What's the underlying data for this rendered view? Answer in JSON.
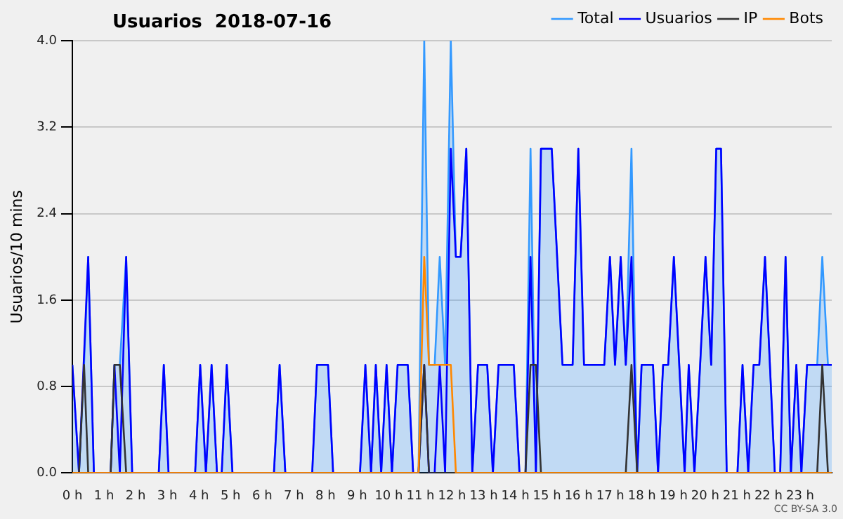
{
  "chart_data": {
    "type": "line",
    "title": "Usuarios  2018-07-16",
    "ylabel": "Usuarios/10 mins",
    "xlim": [
      0,
      24
    ],
    "xticks": [
      {
        "value": 0,
        "label": "0 h"
      },
      {
        "value": 1,
        "label": "1 h"
      },
      {
        "value": 2,
        "label": "2 h"
      },
      {
        "value": 3,
        "label": "3 h"
      },
      {
        "value": 4,
        "label": "4 h"
      },
      {
        "value": 5,
        "label": "5 h"
      },
      {
        "value": 6,
        "label": "6 h"
      },
      {
        "value": 7,
        "label": "7 h"
      },
      {
        "value": 8,
        "label": "8 h"
      },
      {
        "value": 9,
        "label": "9 h"
      },
      {
        "value": 10,
        "label": "10 h"
      },
      {
        "value": 11,
        "label": "11 h"
      },
      {
        "value": 12,
        "label": "12 h"
      },
      {
        "value": 13,
        "label": "13 h"
      },
      {
        "value": 14,
        "label": "14 h"
      },
      {
        "value": 15,
        "label": "15 h"
      },
      {
        "value": 16,
        "label": "16 h"
      },
      {
        "value": 17,
        "label": "17 h"
      },
      {
        "value": 18,
        "label": "18 h"
      },
      {
        "value": 19,
        "label": "19 h"
      },
      {
        "value": 20,
        "label": "20 h"
      },
      {
        "value": 21,
        "label": "21 h"
      },
      {
        "value": 22,
        "label": "22 h"
      },
      {
        "value": 23,
        "label": "23 h"
      }
    ],
    "ylim": [
      0,
      4
    ],
    "yticks": [
      {
        "value": 0,
        "label": "0.0"
      },
      {
        "value": 0.8,
        "label": "0.8"
      },
      {
        "value": 1.6,
        "label": "1.6"
      },
      {
        "value": 2.4,
        "label": "2.4"
      },
      {
        "value": 3.2,
        "label": "3.2"
      },
      {
        "value": 4,
        "label": "4.0"
      }
    ],
    "grid": "y",
    "legend": "top right",
    "marker": "none",
    "line_style": "solid",
    "annotations": [
      "CC BY-SA 3.0"
    ],
    "series": [
      {
        "name": "Total",
        "type": "area",
        "color": "#3399ff",
        "x": [
          0,
          0.21,
          0.37,
          0.5,
          0.68,
          1.21,
          1.33,
          1.5,
          1.7,
          1.89,
          2.73,
          2.89,
          3.04,
          3.88,
          4.04,
          4.22,
          4.4,
          4.57,
          4.72,
          4.88,
          5.06,
          6.37,
          6.55,
          6.73,
          7.58,
          7.73,
          8.08,
          8.24,
          9.09,
          9.26,
          9.44,
          9.59,
          9.76,
          9.93,
          10.1,
          10.28,
          10.6,
          10.77,
          10.94,
          11.12,
          11.27,
          11.45,
          11.61,
          11.78,
          11.96,
          12.12,
          12.27,
          12.45,
          12.64,
          12.82,
          13.11,
          13.29,
          13.47,
          13.95,
          14.13,
          14.32,
          14.48,
          14.65,
          14.81,
          15.15,
          15.49,
          15.81,
          15.99,
          16.17,
          16.81,
          16.99,
          17.15,
          17.33,
          17.49,
          17.67,
          17.85,
          17.99,
          18.35,
          18.51,
          18.67,
          18.83,
          19.01,
          19.35,
          19.48,
          19.66,
          19.84,
          20.01,
          20.19,
          20.35,
          20.5,
          20.68,
          21.02,
          21.18,
          21.36,
          21.53,
          21.71,
          21.89,
          22.2,
          22.37,
          22.54,
          22.71,
          22.88,
          23.04,
          23.22,
          23.54,
          23.7,
          23.88,
          24
        ],
        "values": [
          1,
          0,
          1,
          2,
          0,
          0,
          1,
          1,
          2,
          0,
          0,
          1,
          0,
          0,
          1,
          0,
          1,
          0,
          0,
          1,
          0,
          0,
          1,
          0,
          0,
          1,
          1,
          0,
          0,
          1,
          0,
          1,
          0,
          1,
          0,
          1,
          1,
          0,
          0,
          4,
          1,
          1,
          2,
          1,
          4,
          2,
          2,
          3,
          0,
          1,
          1,
          0,
          1,
          1,
          0,
          0,
          3,
          0,
          3,
          3,
          1,
          1,
          3,
          1,
          1,
          2,
          1,
          2,
          1,
          3,
          0,
          1,
          1,
          0,
          1,
          1,
          2,
          0,
          1,
          0,
          1,
          2,
          1,
          3,
          3,
          0,
          0,
          1,
          0,
          1,
          1,
          2,
          0,
          0,
          2,
          0,
          1,
          0,
          1,
          1,
          2,
          1,
          1
        ]
      },
      {
        "name": "Usuarios",
        "color": "#0000ff",
        "x": [
          0,
          0.21,
          0.5,
          0.68,
          1.21,
          1.33,
          1.5,
          1.7,
          1.89,
          2.73,
          2.89,
          3.04,
          3.88,
          4.04,
          4.22,
          4.4,
          4.57,
          4.72,
          4.88,
          5.06,
          6.37,
          6.55,
          6.73,
          7.58,
          7.73,
          8.08,
          8.24,
          9.09,
          9.26,
          9.44,
          9.59,
          9.76,
          9.93,
          10.1,
          10.28,
          10.6,
          10.77,
          10.94,
          11.12,
          11.27,
          11.45,
          11.61,
          11.78,
          11.96,
          12.12,
          12.27,
          12.45,
          12.64,
          12.82,
          13.11,
          13.29,
          13.47,
          13.95,
          14.13,
          14.32,
          14.48,
          14.65,
          14.81,
          15.15,
          15.49,
          15.81,
          15.99,
          16.17,
          16.81,
          16.99,
          17.15,
          17.33,
          17.49,
          17.67,
          17.85,
          17.99,
          18.35,
          18.51,
          18.67,
          18.83,
          19.01,
          19.35,
          19.48,
          19.66,
          19.84,
          20.01,
          20.19,
          20.35,
          20.5,
          20.68,
          21.02,
          21.18,
          21.36,
          21.53,
          21.71,
          21.89,
          22.2,
          22.37,
          22.54,
          22.71,
          22.88,
          23.04,
          23.22,
          24
        ],
        "values": [
          1,
          0,
          2,
          0,
          0,
          1,
          0,
          2,
          0,
          0,
          1,
          0,
          0,
          1,
          0,
          1,
          0,
          0,
          1,
          0,
          0,
          1,
          0,
          0,
          1,
          1,
          0,
          0,
          1,
          0,
          1,
          0,
          1,
          0,
          1,
          1,
          0,
          0,
          1,
          0,
          0,
          1,
          0,
          3,
          2,
          2,
          3,
          0,
          1,
          1,
          0,
          1,
          1,
          0,
          0,
          2,
          0,
          3,
          3,
          1,
          1,
          3,
          1,
          1,
          2,
          1,
          2,
          1,
          2,
          0,
          1,
          1,
          0,
          1,
          1,
          2,
          0,
          1,
          0,
          1,
          2,
          1,
          3,
          3,
          0,
          0,
          1,
          0,
          1,
          1,
          2,
          0,
          0,
          2,
          0,
          1,
          0,
          1,
          1
        ]
      },
      {
        "name": "IP",
        "color": "#333333",
        "x": [
          0,
          0.21,
          0.37,
          0.5,
          1.21,
          1.33,
          1.5,
          1.7,
          10.94,
          11.12,
          11.27,
          14.32,
          14.48,
          14.65,
          14.81,
          17.49,
          17.67,
          17.85,
          23.54,
          23.7,
          23.88,
          24
        ],
        "values": [
          0,
          0,
          1,
          0,
          0,
          1,
          1,
          0,
          0,
          1,
          0,
          0,
          1,
          1,
          0,
          0,
          1,
          0,
          0,
          1,
          0,
          0
        ]
      },
      {
        "name": "Bots",
        "color": "#ff8800",
        "x": [
          0,
          10.94,
          11.12,
          11.27,
          11.96,
          12.12,
          24
        ],
        "values": [
          0,
          0,
          2,
          1,
          1,
          0,
          0
        ]
      }
    ]
  }
}
